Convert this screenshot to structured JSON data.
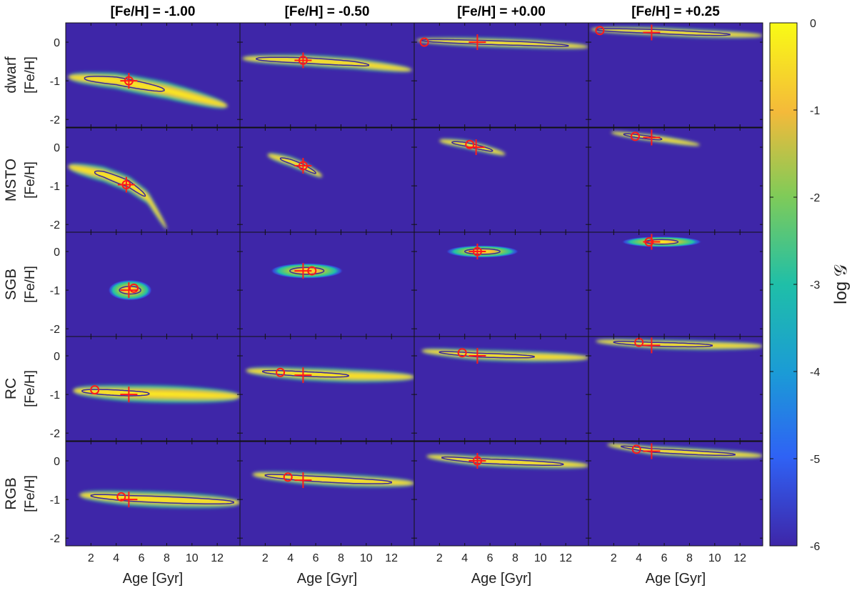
{
  "chart_data": {
    "type": "heatmap",
    "column_titles": [
      "[Fe/H] = -1.00",
      "[Fe/H] = -0.50",
      "[Fe/H] = +0.00",
      "[Fe/H] = +0.25"
    ],
    "row_labels": [
      "dwarf",
      "MSTO",
      "SGB",
      "RC",
      "RGB"
    ],
    "xlabel": "Age [Gyr]",
    "ylabel": "[Fe/H]",
    "xlim": [
      0,
      13.8
    ],
    "ylim": [
      -2.2,
      0.5
    ],
    "xticks": [
      "2",
      "4",
      "6",
      "8",
      "10",
      "12"
    ],
    "yticks": [
      "0",
      "-1",
      "-2"
    ],
    "colorbar": {
      "label": "log 𝒢",
      "range": [
        -6,
        0
      ],
      "ticks": [
        "0",
        "-1",
        "-2",
        "-3",
        "-4",
        "-5",
        "-6"
      ]
    },
    "true_metallicities": [
      -1.0,
      -0.5,
      0.0,
      0.25
    ],
    "true_age": 5.0,
    "panels": [
      [
        {
          "shape": "band",
          "pts": [
            [
              0.2,
              -0.9
            ],
            [
              4,
              -1.0
            ],
            [
              8,
              -1.25
            ],
            [
              12.8,
              -1.65
            ]
          ],
          "w": 0.22,
          "core": [
            1.5,
            7.8
          ],
          "coreW": 0.1,
          "circle": [
            5.0,
            -1.0
          ],
          "cross": [
            5.0,
            -1.0
          ]
        },
        {
          "shape": "band",
          "pts": [
            [
              0.2,
              -0.42
            ],
            [
              5,
              -0.47
            ],
            [
              9,
              -0.55
            ],
            [
              13.6,
              -0.72
            ]
          ],
          "w": 0.15,
          "core": [
            1.3,
            10.2
          ],
          "coreW": 0.07,
          "circle": [
            5.0,
            -0.47
          ],
          "cross": [
            5.0,
            -0.47
          ]
        },
        {
          "shape": "band",
          "pts": [
            [
              0.2,
              0.05
            ],
            [
              5,
              0.0
            ],
            [
              9,
              -0.04
            ],
            [
              13.8,
              -0.12
            ]
          ],
          "w": 0.12,
          "core": [
            0.6,
            12.2
          ],
          "coreW": 0.05,
          "circle": [
            0.8,
            0.0
          ],
          "cross": [
            5.0,
            0.0
          ]
        },
        {
          "shape": "band",
          "pts": [
            [
              0.2,
              0.33
            ],
            [
              5,
              0.28
            ],
            [
              9,
              0.22
            ],
            [
              13.8,
              0.17
            ]
          ],
          "w": 0.11,
          "core": [
            0.6,
            11.2
          ],
          "coreW": 0.05,
          "circle": [
            0.9,
            0.3
          ],
          "cross": [
            5.0,
            0.25
          ]
        }
      ],
      [
        {
          "shape": "band",
          "pts": [
            [
              0.2,
              -0.5
            ],
            [
              3,
              -0.7
            ],
            [
              5,
              -0.95
            ],
            [
              6.5,
              -1.3
            ],
            [
              8,
              -2.1
            ]
          ],
          "w": 0.2,
          "core": [
            2.3,
            6.3
          ],
          "coreW": 0.09,
          "circle": [
            4.8,
            -0.97
          ],
          "cross": [
            4.8,
            -0.97
          ]
        },
        {
          "shape": "band",
          "pts": [
            [
              2.2,
              -0.2
            ],
            [
              4,
              -0.37
            ],
            [
              5,
              -0.5
            ],
            [
              6.5,
              -0.75
            ]
          ],
          "w": 0.13,
          "core": [
            3.2,
            6.0
          ],
          "coreW": 0.06,
          "circle": [
            5.0,
            -0.48
          ],
          "cross": [
            5.0,
            -0.48
          ]
        },
        {
          "shape": "band",
          "pts": [
            [
              2.0,
              0.17
            ],
            [
              4,
              0.08
            ],
            [
              5.5,
              -0.03
            ],
            [
              7.2,
              -0.18
            ]
          ],
          "w": 0.11,
          "core": [
            3.0,
            6.2
          ],
          "coreW": 0.05,
          "circle": [
            4.4,
            0.07
          ],
          "cross": [
            4.9,
            0.0
          ]
        },
        {
          "shape": "band",
          "pts": [
            [
              1.8,
              0.38
            ],
            [
              4,
              0.28
            ],
            [
              6,
              0.2
            ],
            [
              8.8,
              0.06
            ]
          ],
          "w": 0.09,
          "core": [
            2.8,
            5.8
          ],
          "coreW": 0.04,
          "circle": [
            3.7,
            0.28
          ],
          "cross": [
            5.0,
            0.25
          ]
        }
      ],
      [
        {
          "shape": "blob",
          "cx": 5.1,
          "cy": -1.0,
          "rx": 1.75,
          "ry": 0.27,
          "crx": 0.85,
          "cry": 0.1,
          "circle": [
            5.4,
            -0.95
          ],
          "cross": [
            5.0,
            -1.0
          ]
        },
        {
          "shape": "blob",
          "cx": 5.3,
          "cy": -0.5,
          "rx": 2.9,
          "ry": 0.2,
          "crx": 1.35,
          "cry": 0.09,
          "circle": [
            5.7,
            -0.5
          ],
          "cross": [
            5.0,
            -0.5
          ]
        },
        {
          "shape": "blob",
          "cx": 5.4,
          "cy": 0.0,
          "rx": 2.9,
          "ry": 0.16,
          "crx": 1.4,
          "cry": 0.07,
          "circle": [
            5.0,
            0.0
          ],
          "cross": [
            5.0,
            0.0
          ]
        },
        {
          "shape": "blob",
          "cx": 5.8,
          "cy": 0.25,
          "rx": 3.2,
          "ry": 0.14,
          "crx": 1.3,
          "cry": 0.06,
          "circle": [
            4.8,
            0.25
          ],
          "cross": [
            5.0,
            0.25
          ]
        }
      ],
      [
        {
          "shape": "band",
          "pts": [
            [
              0.6,
              -0.9
            ],
            [
              5,
              -0.97
            ],
            [
              9,
              -1.0
            ],
            [
              13.8,
              -1.05
            ]
          ],
          "w": 0.22,
          "core": [
            1.3,
            6.6
          ],
          "coreW": 0.07,
          "circle": [
            2.3,
            -0.88
          ],
          "cross": [
            5.0,
            -1.0
          ]
        },
        {
          "shape": "band",
          "pts": [
            [
              0.5,
              -0.38
            ],
            [
              5,
              -0.47
            ],
            [
              9,
              -0.52
            ],
            [
              13.8,
              -0.55
            ]
          ],
          "w": 0.17,
          "core": [
            1.8,
            8.6
          ],
          "coreW": 0.06,
          "circle": [
            3.2,
            -0.43
          ],
          "cross": [
            5.0,
            -0.5
          ]
        },
        {
          "shape": "band",
          "pts": [
            [
              0.6,
              0.13
            ],
            [
              5,
              0.02
            ],
            [
              9,
              -0.02
            ],
            [
              13.8,
              -0.05
            ]
          ],
          "w": 0.14,
          "core": [
            2.0,
            9.5
          ],
          "coreW": 0.05,
          "circle": [
            3.8,
            0.08
          ],
          "cross": [
            5.0,
            0.0
          ]
        },
        {
          "shape": "band",
          "pts": [
            [
              0.6,
              0.38
            ],
            [
              5,
              0.3
            ],
            [
              9,
              0.27
            ],
            [
              13.8,
              0.25
            ]
          ],
          "w": 0.12,
          "core": [
            2.0,
            9.8
          ],
          "coreW": 0.05,
          "circle": [
            4.0,
            0.35
          ],
          "cross": [
            5.0,
            0.27
          ]
        }
      ],
      [
        {
          "shape": "band",
          "pts": [
            [
              1.1,
              -0.88
            ],
            [
              5,
              -0.97
            ],
            [
              9,
              -1.02
            ],
            [
              13.8,
              -1.08
            ]
          ],
          "w": 0.2,
          "core": [
            2.0,
            13.3
          ],
          "coreW": 0.08,
          "circle": [
            4.4,
            -0.93
          ],
          "cross": [
            5.0,
            -1.0
          ]
        },
        {
          "shape": "band",
          "pts": [
            [
              1.0,
              -0.35
            ],
            [
              5,
              -0.45
            ],
            [
              9,
              -0.52
            ],
            [
              13.8,
              -0.58
            ]
          ],
          "w": 0.16,
          "core": [
            2.0,
            12.0
          ],
          "coreW": 0.07,
          "circle": [
            3.8,
            -0.42
          ],
          "cross": [
            5.0,
            -0.5
          ]
        },
        {
          "shape": "band",
          "pts": [
            [
              1.0,
              0.12
            ],
            [
              5,
              0.0
            ],
            [
              9,
              -0.05
            ],
            [
              13.8,
              -0.12
            ]
          ],
          "w": 0.14,
          "core": [
            2.2,
            11.8
          ],
          "coreW": 0.06,
          "circle": [
            5.0,
            0.0
          ],
          "cross": [
            5.0,
            0.0
          ]
        },
        {
          "shape": "band",
          "pts": [
            [
              1.5,
              0.42
            ],
            [
              5,
              0.27
            ],
            [
              9,
              0.2
            ],
            [
              13.8,
              0.13
            ]
          ],
          "w": 0.12,
          "core": [
            2.6,
            11.6
          ],
          "coreW": 0.05,
          "circle": [
            3.8,
            0.3
          ],
          "cross": [
            5.0,
            0.25
          ]
        }
      ]
    ]
  }
}
